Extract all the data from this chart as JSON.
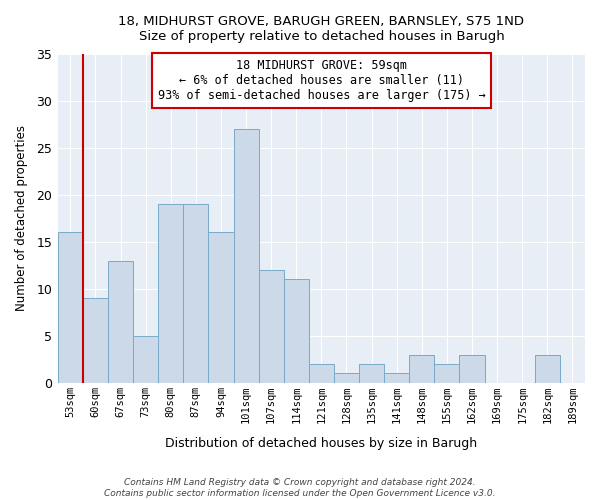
{
  "title": "18, MIDHURST GROVE, BARUGH GREEN, BARNSLEY, S75 1ND",
  "subtitle": "Size of property relative to detached houses in Barugh",
  "xlabel": "Distribution of detached houses by size in Barugh",
  "ylabel": "Number of detached properties",
  "bins": [
    "53sqm",
    "60sqm",
    "67sqm",
    "73sqm",
    "80sqm",
    "87sqm",
    "94sqm",
    "101sqm",
    "107sqm",
    "114sqm",
    "121sqm",
    "128sqm",
    "135sqm",
    "141sqm",
    "148sqm",
    "155sqm",
    "162sqm",
    "169sqm",
    "175sqm",
    "182sqm",
    "189sqm"
  ],
  "values": [
    16,
    9,
    13,
    5,
    19,
    19,
    16,
    27,
    12,
    11,
    2,
    1,
    2,
    1,
    3,
    2,
    3,
    0,
    0,
    3,
    0
  ],
  "bar_color": "#ccd9e8",
  "bar_edge_color": "#7aaac8",
  "highlight_color": "#cc0000",
  "annotation_title": "18 MIDHURST GROVE: 59sqm",
  "annotation_line1": "← 6% of detached houses are smaller (11)",
  "annotation_line2": "93% of semi-detached houses are larger (175) →",
  "annotation_box_color": "#ffffff",
  "annotation_box_edge_color": "#cc0000",
  "plot_bg_color": "#e8eef6",
  "grid_color": "#ffffff",
  "ylim": [
    0,
    35
  ],
  "yticks": [
    0,
    5,
    10,
    15,
    20,
    25,
    30,
    35
  ],
  "footer1": "Contains HM Land Registry data © Crown copyright and database right 2024.",
  "footer2": "Contains public sector information licensed under the Open Government Licence v3.0."
}
